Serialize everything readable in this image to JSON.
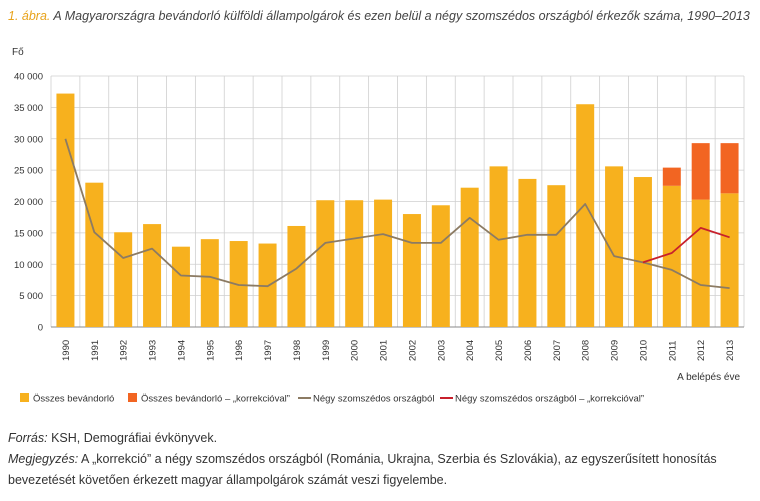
{
  "figure": {
    "number": "1. ábra.",
    "title": "A Magyarországra bevándorló külföldi állampolgárok és ezen belül a négy szomszédos országból érkezők száma, 1990–2013"
  },
  "notes": {
    "source_label": "Forrás:",
    "source_text": " KSH, Demográfiai évkönyvek.",
    "note_label": "Megjegyzés:",
    "note_text": " A „korrekció” a négy szomszédos országból (Románia, Ukrajna, Szerbia és Szlovákia), az egyszerűsített honosítás bevezetését követően érkezett magyar állampolgárok számát veszi figyelembe."
  },
  "colors": {
    "bar": "#f7b11e",
    "bar_correction": "#f26522",
    "line": "#8c7b63",
    "line_correction": "#c8202c",
    "grid": "#cfcfcf"
  },
  "chart_data": {
    "type": "bar",
    "ylabel": "Fő",
    "xlabel": "A belépés éve",
    "ylim": [
      0,
      40000
    ],
    "yticks": [
      "0",
      "5 000",
      "10 000",
      "15 000",
      "20 000",
      "25 000",
      "30 000",
      "35 000",
      "40 000"
    ],
    "grid": true,
    "legend_position": "bottom",
    "categories": [
      "1990",
      "1991",
      "1992",
      "1993",
      "1994",
      "1995",
      "1996",
      "1997",
      "1998",
      "1999",
      "2000",
      "2001",
      "2002",
      "2003",
      "2004",
      "2005",
      "2006",
      "2007",
      "2008",
      "2009",
      "2010",
      "2011",
      "2012",
      "2013"
    ],
    "series": [
      {
        "name": "Összes bevándorló",
        "kind": "bar",
        "values": [
          37200,
          23000,
          15100,
          16400,
          12800,
          14000,
          13700,
          13300,
          16100,
          20200,
          20200,
          20300,
          18000,
          19400,
          22200,
          25600,
          23600,
          22600,
          35500,
          25600,
          23900,
          22500,
          20300,
          21300
        ]
      },
      {
        "name": "Összes bevándorló – „korrekcióval”",
        "kind": "stacked_bar",
        "values": [
          null,
          null,
          null,
          null,
          null,
          null,
          null,
          null,
          null,
          null,
          null,
          null,
          null,
          null,
          null,
          null,
          null,
          null,
          null,
          null,
          null,
          2900,
          9000,
          8000
        ]
      },
      {
        "name": "Négy szomszédos országból",
        "kind": "line",
        "values": [
          30000,
          15100,
          11000,
          12500,
          8200,
          8000,
          6700,
          6500,
          9300,
          13400,
          14100,
          14800,
          13400,
          13400,
          17400,
          13900,
          14700,
          14700,
          19600,
          11300,
          10300,
          9100,
          6700,
          6200
        ]
      },
      {
        "name": "Négy szomszédos országból – „korrekcióval”",
        "kind": "line",
        "values": [
          null,
          null,
          null,
          null,
          null,
          null,
          null,
          null,
          null,
          null,
          null,
          null,
          null,
          null,
          null,
          null,
          null,
          null,
          null,
          null,
          10300,
          11800,
          15800,
          14300
        ]
      }
    ]
  }
}
